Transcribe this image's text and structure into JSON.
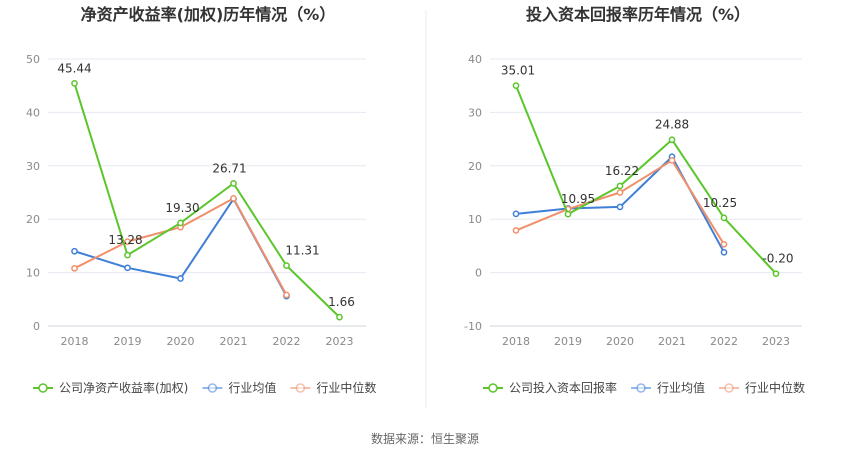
{
  "source": "数据来源：恒生聚源",
  "legend_labels": {
    "industry_avg": "行业均值",
    "industry_median": "行业中位数"
  },
  "colors": {
    "company": "#5bc62b",
    "industry_avg": "#3f7fd8",
    "industry_median": "#f0906a",
    "grid": "#e6e8f0",
    "axis_text": "#8a8a8a",
    "title": "#333333"
  },
  "chart_data": [
    {
      "type": "line",
      "title": "净资产收益率(加权)历年情况（%）",
      "categories": [
        "2018",
        "2019",
        "2020",
        "2021",
        "2022",
        "2023"
      ],
      "ylim": [
        0,
        50
      ],
      "yticks": [
        0,
        10,
        20,
        30,
        40,
        50
      ],
      "grid": true,
      "legend_position": "bottom-left",
      "series": [
        {
          "key": "company",
          "name": "公司净资产收益率(加权)",
          "values": [
            45.44,
            13.28,
            19.3,
            26.71,
            11.31,
            1.66
          ],
          "labels": [
            "45.44",
            "13.28",
            "19.30",
            "26.71",
            "11.31",
            "1.66"
          ]
        },
        {
          "key": "industry_avg",
          "name": "行业均值",
          "values": [
            14.0,
            10.9,
            8.9,
            23.8,
            5.6,
            null
          ]
        },
        {
          "key": "industry_median",
          "name": "行业中位数",
          "values": [
            10.8,
            15.8,
            18.5,
            23.9,
            5.8,
            null
          ]
        }
      ]
    },
    {
      "type": "line",
      "title": "投入资本回报率历年情况（%）",
      "categories": [
        "2018",
        "2019",
        "2020",
        "2021",
        "2022",
        "2023"
      ],
      "ylim": [
        -10,
        40
      ],
      "yticks": [
        -10,
        0,
        10,
        20,
        30,
        40
      ],
      "grid": true,
      "legend_position": "bottom-left",
      "series": [
        {
          "key": "company",
          "name": "公司投入资本回报率",
          "values": [
            35.01,
            10.95,
            16.22,
            24.88,
            10.25,
            -0.2
          ],
          "labels": [
            "35.01",
            "10.95",
            "16.22",
            "24.88",
            "10.25",
            "-0.20"
          ]
        },
        {
          "key": "industry_avg",
          "name": "行业均值",
          "values": [
            11.0,
            12.0,
            12.3,
            21.7,
            3.8,
            null
          ]
        },
        {
          "key": "industry_median",
          "name": "行业中位数",
          "values": [
            7.9,
            11.9,
            15.0,
            21.0,
            5.3,
            null
          ]
        }
      ]
    }
  ]
}
